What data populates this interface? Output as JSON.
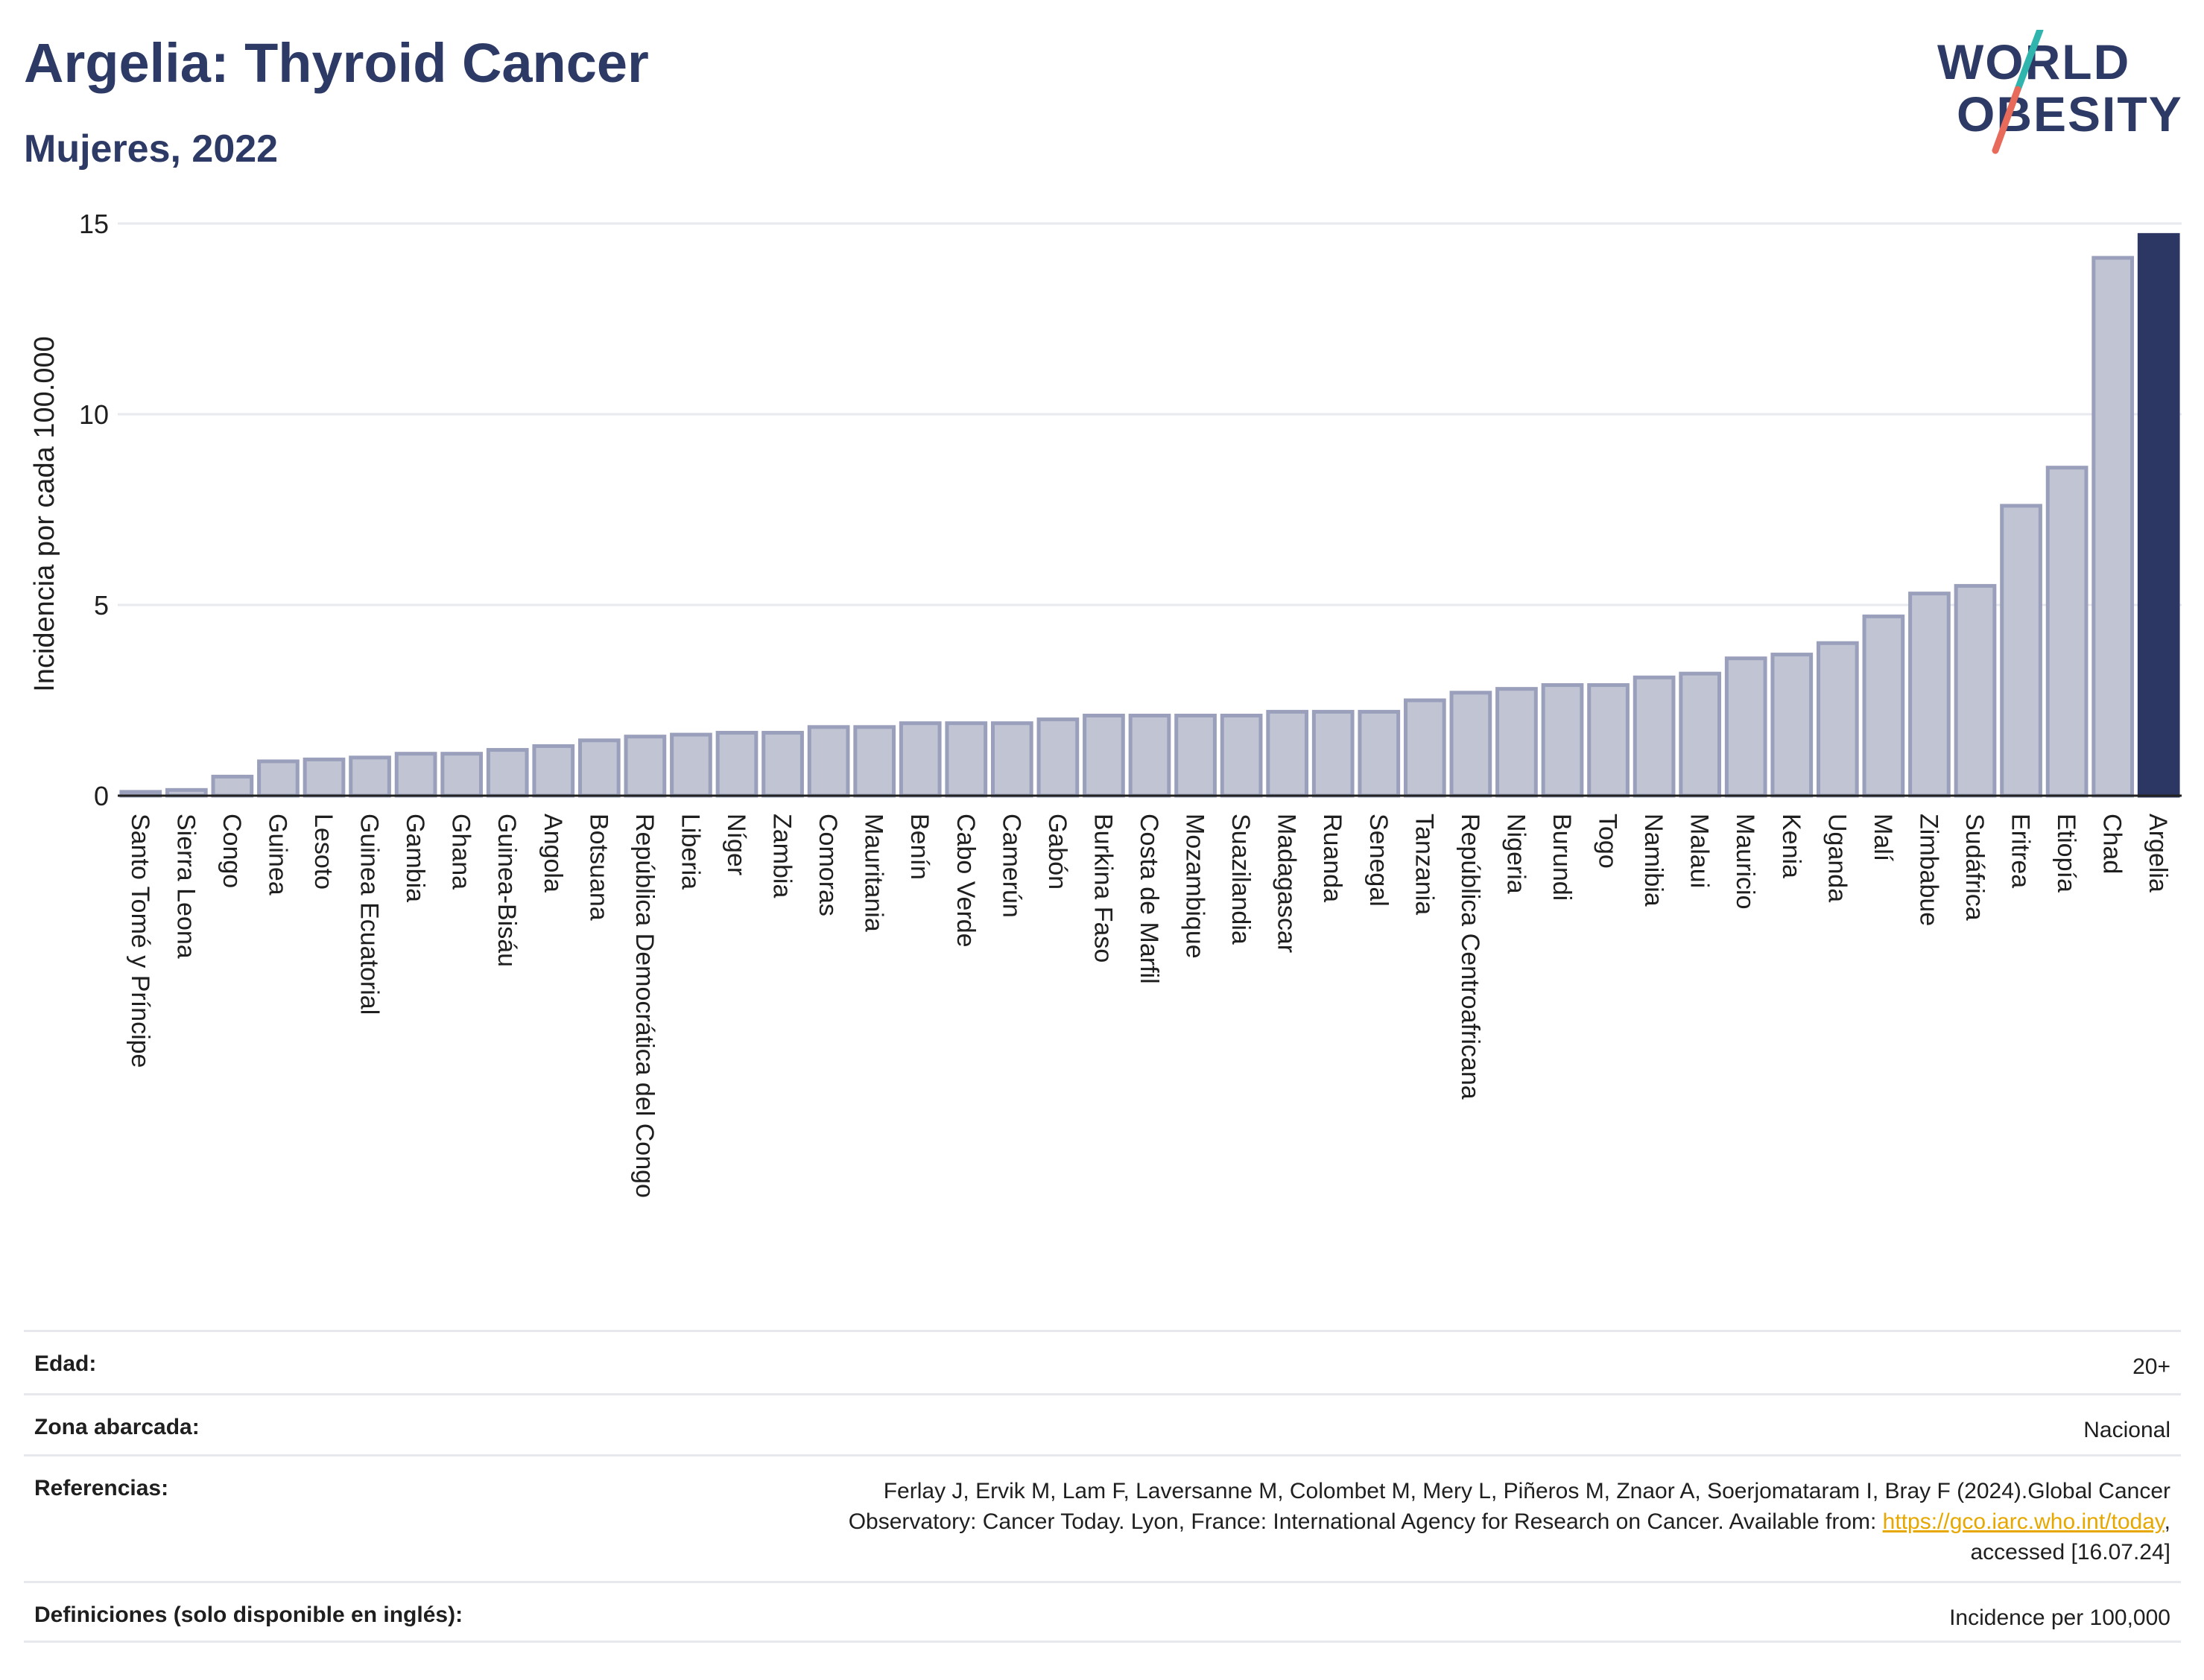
{
  "header": {
    "title": "Argelia: Thyroid Cancer",
    "subtitle": "Mujeres, 2022"
  },
  "logo": {
    "line1": "WORLD",
    "line2": "OBESITY"
  },
  "chart_data": {
    "type": "bar",
    "ylabel": "Incidencia por cada 100.000",
    "ylim": [
      0,
      15
    ],
    "yticks": [
      0,
      5,
      10,
      15
    ],
    "grid": true,
    "highlight": "Argelia",
    "colors": {
      "bar_fill": "#c0c4d3",
      "bar_stroke": "#9aa0bb",
      "highlight_fill": "#2d3763",
      "grid": "#e8e9ee"
    },
    "categories": [
      "Santo Tomé y Príncipe",
      "Sierra Leona",
      "Congo",
      "Guinea",
      "Lesoto",
      "Guinea Ecuatorial",
      "Gambia",
      "Ghana",
      "Guinea-Bisáu",
      "Angola",
      "Botsuana",
      "República Democrática del Congo",
      "Liberia",
      "Níger",
      "Zambia",
      "Comoras",
      "Mauritania",
      "Benín",
      "Cabo Verde",
      "Camerún",
      "Gabón",
      "Burkina Faso",
      "Costa de Marfil",
      "Mozambique",
      "Suazilandia",
      "Madagascar",
      "Ruanda",
      "Senegal",
      "Tanzania",
      "República Centroafricana",
      "Nigeria",
      "Burundi",
      "Togo",
      "Namibia",
      "Malaui",
      "Mauricio",
      "Kenia",
      "Uganda",
      "Malí",
      "Zimbabue",
      "Sudáfrica",
      "Eritrea",
      "Etiopía",
      "Chad",
      "Argelia"
    ],
    "values": [
      0.1,
      0.15,
      0.5,
      0.9,
      0.95,
      1.0,
      1.1,
      1.1,
      1.2,
      1.3,
      1.45,
      1.55,
      1.6,
      1.65,
      1.65,
      1.8,
      1.8,
      1.9,
      1.9,
      1.9,
      2.0,
      2.1,
      2.1,
      2.1,
      2.1,
      2.2,
      2.2,
      2.2,
      2.5,
      2.7,
      2.8,
      2.9,
      2.9,
      3.1,
      3.2,
      3.6,
      3.7,
      4.0,
      4.7,
      5.3,
      5.5,
      7.6,
      8.6,
      14.1,
      14.7
    ]
  },
  "info": {
    "age_label": "Edad:",
    "age_value": "20+",
    "area_label": "Zona abarcada:",
    "area_value": "Nacional",
    "refs_label": "Referencias:",
    "refs_line1": "Ferlay J, Ervik M, Lam F, Laversanne M, Colombet M, Mery L, Piñeros M, Znaor A, Soerjomataram I, Bray F (2024).Global Cancer",
    "refs_line2_pre": "Observatory: Cancer Today. Lyon, France: International Agency for Research on Cancer. Available from: ",
    "refs_link": "https://gco.iarc.who.int/today",
    "refs_line2_post": ",",
    "refs_line3": "accessed [16.07.24]",
    "defs_label": "Definiciones (solo disponible en inglés):",
    "defs_value": "Incidence per 100,000"
  }
}
